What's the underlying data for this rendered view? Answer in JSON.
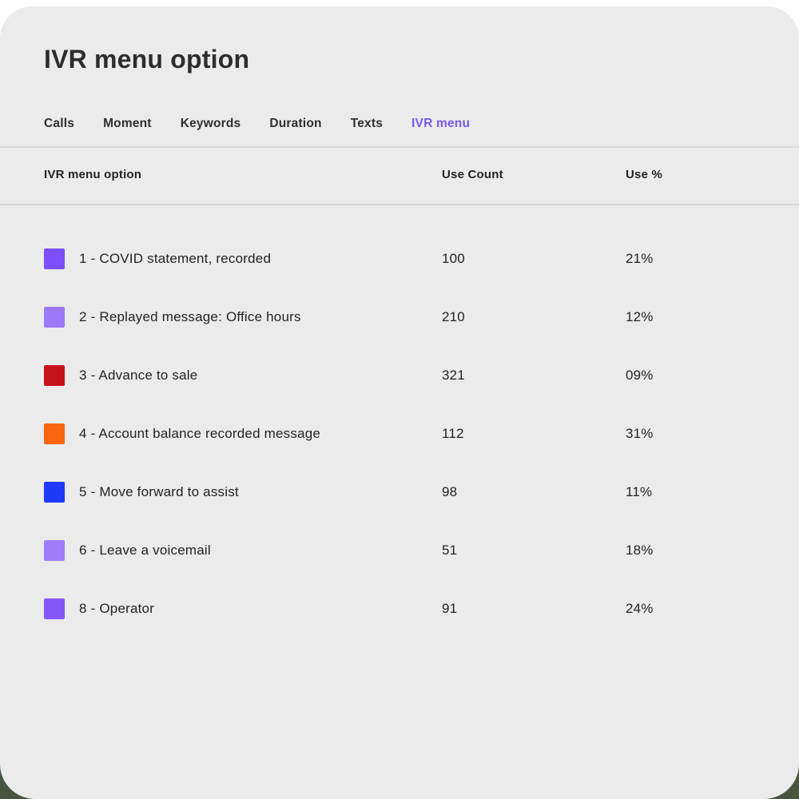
{
  "page": {
    "title": "IVR menu option"
  },
  "colors": {
    "card_background": "#EBEBEB",
    "divider": "#D7D7D7",
    "accent_active_tab": "#7857F5",
    "title_text": "#2D2D2D",
    "body_text": "#232323",
    "outer_bottom_background": "#4A5A4B"
  },
  "tabs": [
    {
      "label": "Calls",
      "active": false
    },
    {
      "label": "Moment",
      "active": false
    },
    {
      "label": "Keywords",
      "active": false
    },
    {
      "label": "Duration",
      "active": false
    },
    {
      "label": "Texts",
      "active": false
    },
    {
      "label": "IVR menu",
      "active": true
    }
  ],
  "table": {
    "headers": {
      "option": "IVR menu option",
      "use_count": "Use Count",
      "use_pct": "Use %"
    },
    "rows": [
      {
        "label": "1 - COVID statement, recorded",
        "color": "#7C4FFB",
        "use_count": "100",
        "use_pct": "21%"
      },
      {
        "label": "2 - Replayed message: Office hours",
        "color": "#9B79F8",
        "use_count": "210",
        "use_pct": "12%"
      },
      {
        "label": "3 - Advance to sale",
        "color": "#C8121B",
        "use_count": "321",
        "use_pct": "09%"
      },
      {
        "label": "4 - Account balance recorded message",
        "color": "#FA660F",
        "use_count": "112",
        "use_pct": "31%"
      },
      {
        "label": "5 - Move forward to assist",
        "color": "#1D39FA",
        "use_count": "98",
        "use_pct": "11%"
      },
      {
        "label": "6 - Leave a voicemail",
        "color": "#9D7EFA",
        "use_count": "51",
        "use_pct": "18%"
      },
      {
        "label": "8 - Operator",
        "color": "#8457F7",
        "use_count": "91",
        "use_pct": "24%"
      }
    ]
  }
}
